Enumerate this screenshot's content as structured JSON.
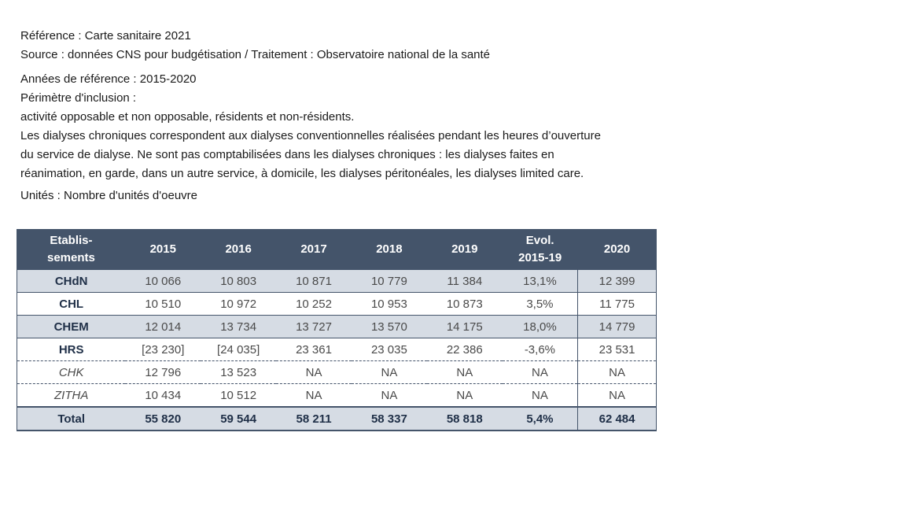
{
  "notes": {
    "reference": "Référence : Carte sanitaire 2021",
    "source": "Source : données CNS pour budgétisation / Traitement : Observatoire national de la santé",
    "years": "Années de référence : 2015-2020",
    "perimeter_title": "Périmètre d'inclusion :",
    "perimeter_text": "activité opposable et non opposable, résidents et non-résidents.",
    "description_line1": "Les dialyses chroniques correspondent aux dialyses conventionnelles réalisées pendant les heures d’ouverture",
    "description_line2": "du service de dialyse. Ne sont pas comptabilisées dans les dialyses chroniques : les dialyses faites en",
    "description_line3": "réanimation, en garde, dans un autre service, à domicile, les dialyses péritonéales, les dialyses limited care.",
    "units": "Unités : Nombre d'unités d'oeuvre"
  },
  "table": {
    "header_col1_line1": "Etablis-",
    "header_col1_line2": "sements",
    "header_2015": "2015",
    "header_2016": "2016",
    "header_2017": "2017",
    "header_2018": "2018",
    "header_2019": "2019",
    "header_evol_line1": "Evol.",
    "header_evol_line2": "2015-19",
    "header_2020": "2020",
    "rows": [
      {
        "name": "CHdN",
        "v2015": "10 066",
        "v2016": "10 803",
        "v2017": "10 871",
        "v2018": "10 779",
        "v2019": "11 384",
        "evol": "13,1%",
        "v2020": "12 399"
      },
      {
        "name": "CHL",
        "v2015": "10 510",
        "v2016": "10 972",
        "v2017": "10 252",
        "v2018": "10 953",
        "v2019": "10 873",
        "evol": "3,5%",
        "v2020": "11 775"
      },
      {
        "name": "CHEM",
        "v2015": "12 014",
        "v2016": "13 734",
        "v2017": "13 727",
        "v2018": "13 570",
        "v2019": "14 175",
        "evol": "18,0%",
        "v2020": "14 779"
      },
      {
        "name": "HRS",
        "v2015": "[23 230]",
        "v2016": "[24 035]",
        "v2017": "23 361",
        "v2018": "23 035",
        "v2019": "22 386",
        "evol": "-3,6%",
        "v2020": "23 531"
      },
      {
        "name": "CHK",
        "v2015": "12 796",
        "v2016": "13 523",
        "v2017": "NA",
        "v2018": "NA",
        "v2019": "NA",
        "evol": "NA",
        "v2020": "NA"
      },
      {
        "name": "ZITHA",
        "v2015": "10 434",
        "v2016": "10 512",
        "v2017": "NA",
        "v2018": "NA",
        "v2019": "NA",
        "evol": "NA",
        "v2020": "NA"
      }
    ],
    "total": {
      "name": "Total",
      "v2015": "55 820",
      "v2016": "59 544",
      "v2017": "58 211",
      "v2018": "58 337",
      "v2019": "58 818",
      "evol": "5,4%",
      "v2020": "62 484"
    }
  },
  "colors": {
    "header_bg": "#44546a",
    "shaded_row_bg": "#d6dce4"
  }
}
